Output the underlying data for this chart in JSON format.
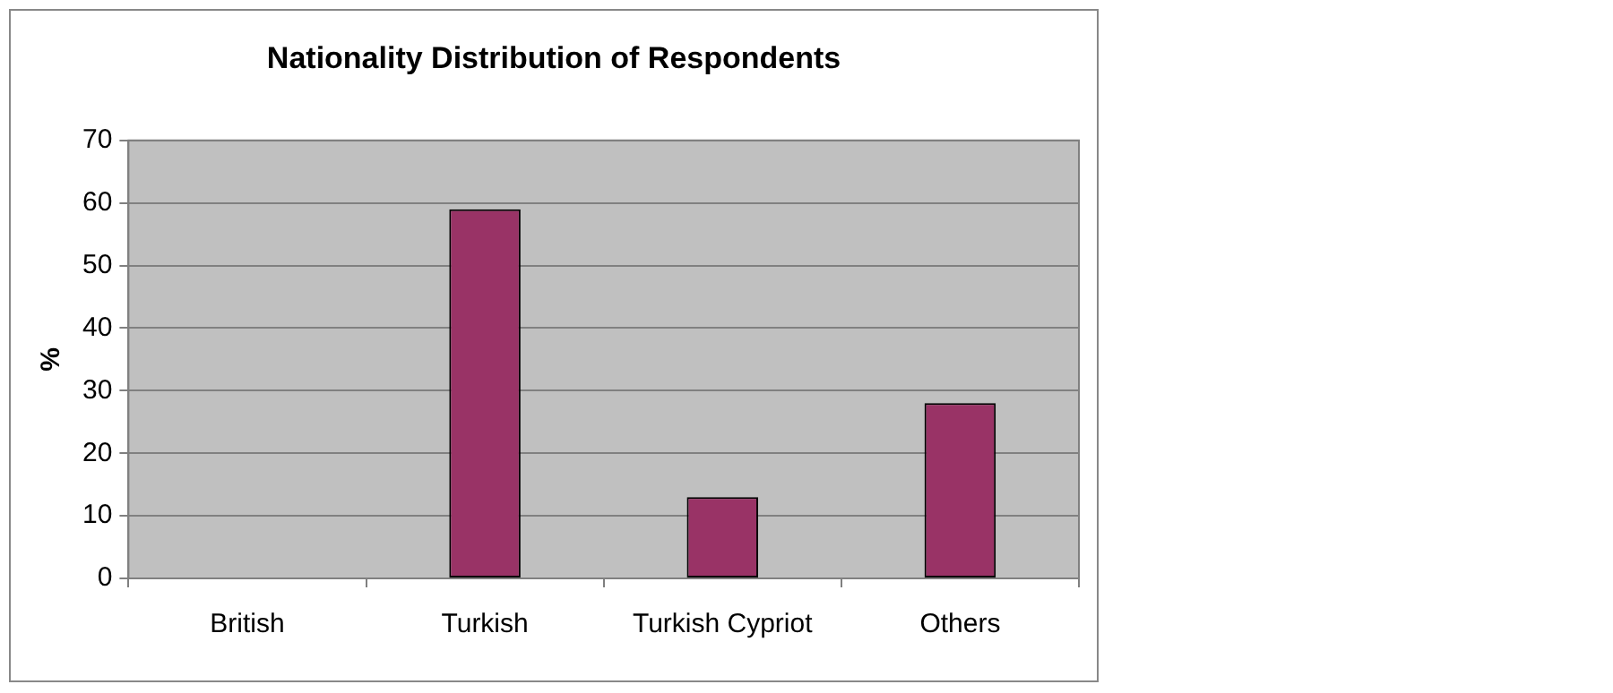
{
  "chart_data": {
    "type": "bar",
    "title": "Nationality Distribution of Respondents",
    "ylabel": "%",
    "categories": [
      "British",
      "Turkish",
      "Turkish Cypriot",
      "Others"
    ],
    "values": [
      0,
      59,
      13,
      28
    ],
    "color": "#993366",
    "ylim": [
      0,
      70
    ],
    "yticks": [
      0,
      10,
      20,
      30,
      40,
      50,
      60,
      70
    ],
    "grid": "y"
  }
}
